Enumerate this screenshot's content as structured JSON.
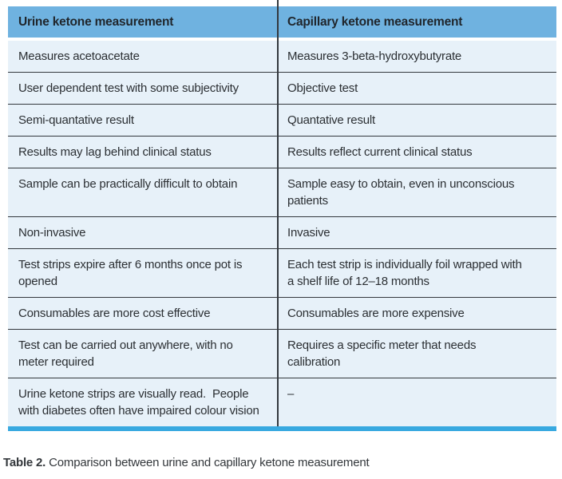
{
  "table": {
    "headers": [
      "Urine ketone measurement",
      "Capillary ketone measurement"
    ],
    "rows": [
      [
        "Measures acetoacetate",
        "Measures 3-beta-hydroxybutyrate"
      ],
      [
        "User dependent test with some subjectivity",
        "Objective test"
      ],
      [
        "Semi-quantative result",
        "Quantative result"
      ],
      [
        "Results may lag behind clinical status",
        "Results reflect current clinical status"
      ],
      [
        "Sample can be practically difficult to obtain",
        "Sample easy to obtain, even in unconscious patients"
      ],
      [
        "Non-invasive",
        "Invasive"
      ],
      [
        "Test strips expire after 6 months once pot is opened",
        "Each test strip is individually foil wrapped with a shelf life of 12–18 months"
      ],
      [
        "Consumables are more cost effective",
        "Consumables are more expensive"
      ],
      [
        "Test can be carried out anywhere, with no meter required",
        "Requires a specific meter that needs calibration"
      ],
      [
        "Urine ketone strips are visually read.  People with diabetes often have impaired colour vision",
        "–"
      ]
    ]
  },
  "caption": {
    "label": "Table 2.",
    "text": " Comparison between urine and capillary ketone measurement"
  },
  "colors": {
    "header_bg": "#6fb2e0",
    "row_bg": "#e7f1f9",
    "divider": "#33383d",
    "accent_bar": "#38a9e0",
    "text": "#2b2f33"
  }
}
